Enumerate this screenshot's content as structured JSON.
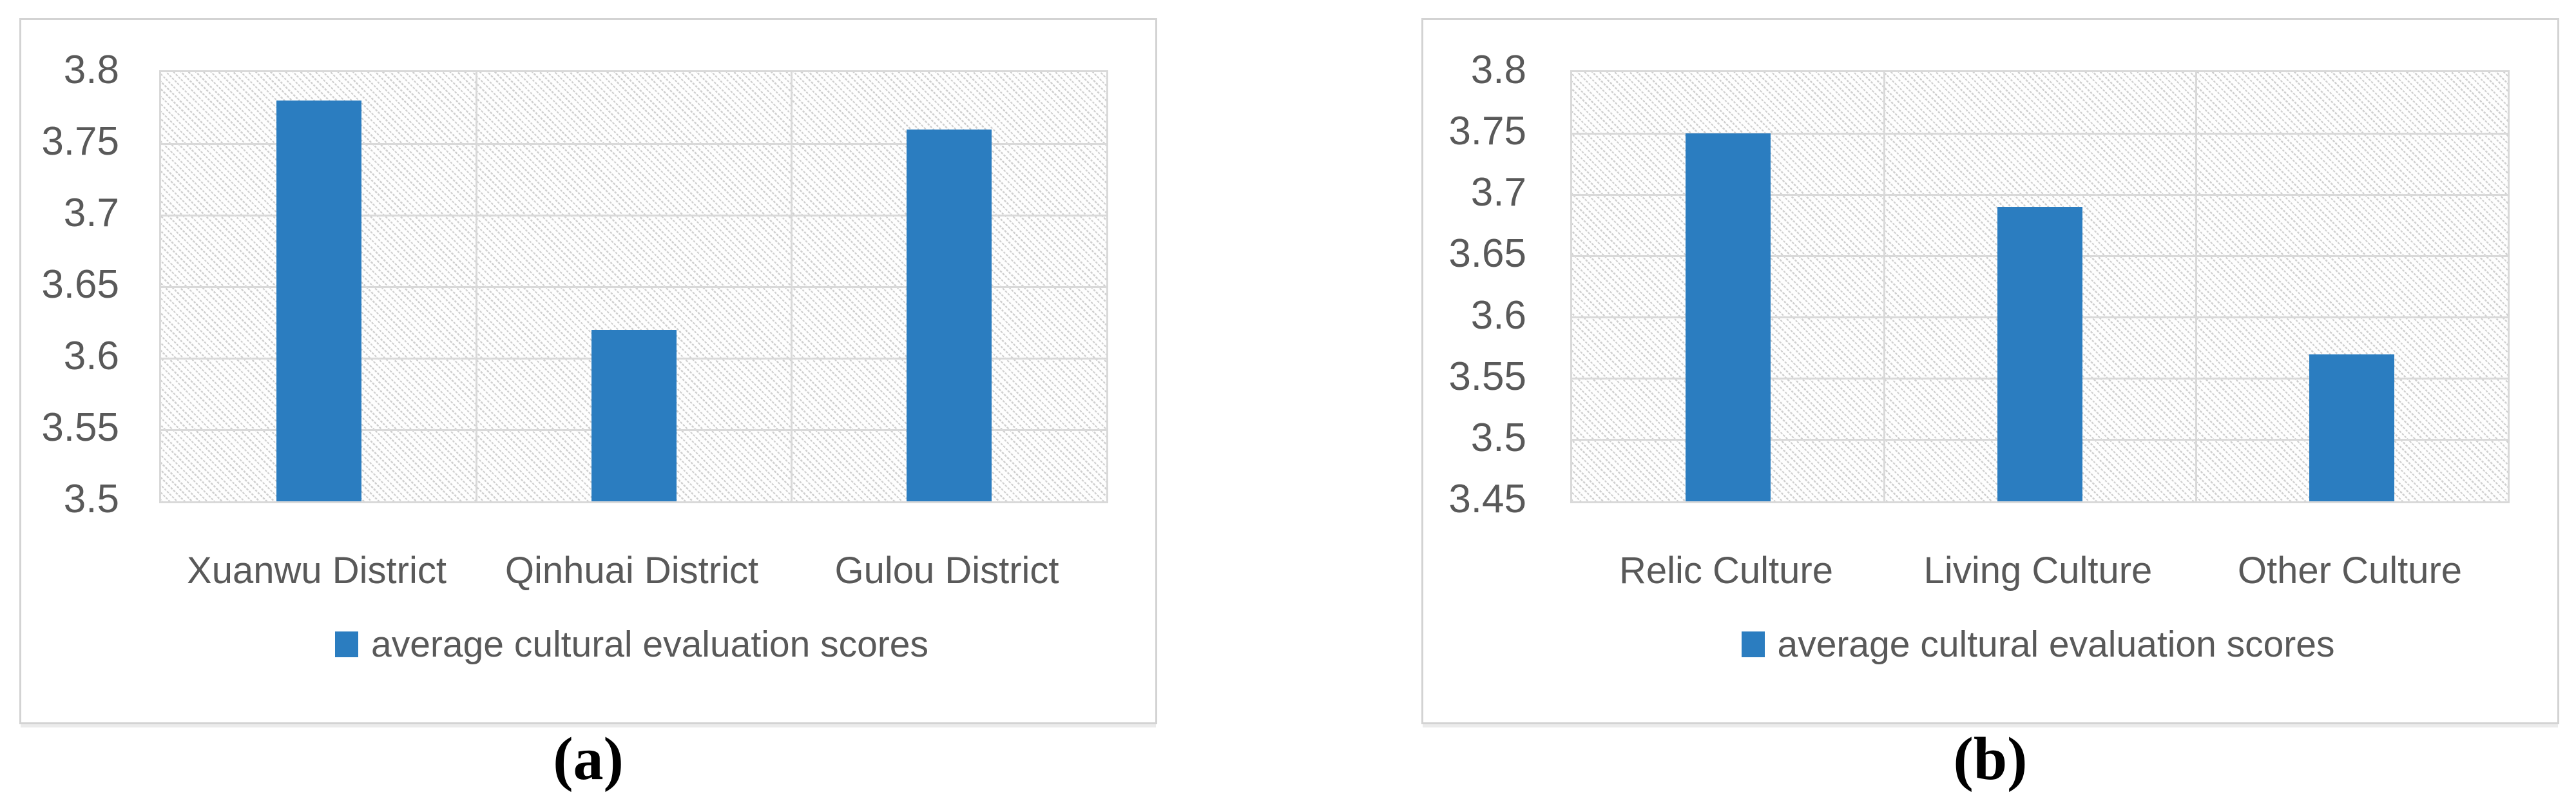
{
  "figure": {
    "kind": "two-panel bar chart figure",
    "background": "#ffffff"
  },
  "colors": {
    "bar": "#2b7dc0",
    "grid": "#d9d9d9",
    "text": "#595959",
    "panel_border": "#d3d3d3",
    "caption_text": "#000000"
  },
  "chart_data": [
    {
      "type": "bar",
      "panel": "a",
      "caption": "(a)",
      "title": "",
      "xlabel": "",
      "ylabel": "",
      "categories": [
        "Xuanwu District",
        "Qinhuai District",
        "Gulou District"
      ],
      "values": [
        3.78,
        3.62,
        3.76
      ],
      "series": [
        {
          "name": "average cultural evaluation scores",
          "values": [
            3.78,
            3.62,
            3.76
          ]
        }
      ],
      "legend": "average cultural evaluation scores",
      "legend_position": "bottom",
      "ylim": [
        3.5,
        3.8
      ],
      "ytick_labels": [
        "3.8",
        "3.75",
        "3.7",
        "3.65",
        "3.6",
        "3.55",
        "3.5"
      ],
      "grid": true,
      "plot_background": "light diagonal hatch pattern"
    },
    {
      "type": "bar",
      "panel": "b",
      "caption": "(b)",
      "title": "",
      "xlabel": "",
      "ylabel": "",
      "categories": [
        "Relic Culture",
        "Living Culture",
        "Other Culture"
      ],
      "values": [
        3.75,
        3.69,
        3.57
      ],
      "series": [
        {
          "name": "average cultural evaluation scores",
          "values": [
            3.75,
            3.69,
            3.57
          ]
        }
      ],
      "legend": "average cultural evaluation scores",
      "legend_position": "bottom",
      "ylim": [
        3.45,
        3.8
      ],
      "ytick_labels": [
        "3.8",
        "3.75",
        "3.7",
        "3.65",
        "3.6",
        "3.55",
        "3.5",
        "3.45"
      ],
      "grid": true,
      "plot_background": "light diagonal hatch pattern"
    }
  ]
}
